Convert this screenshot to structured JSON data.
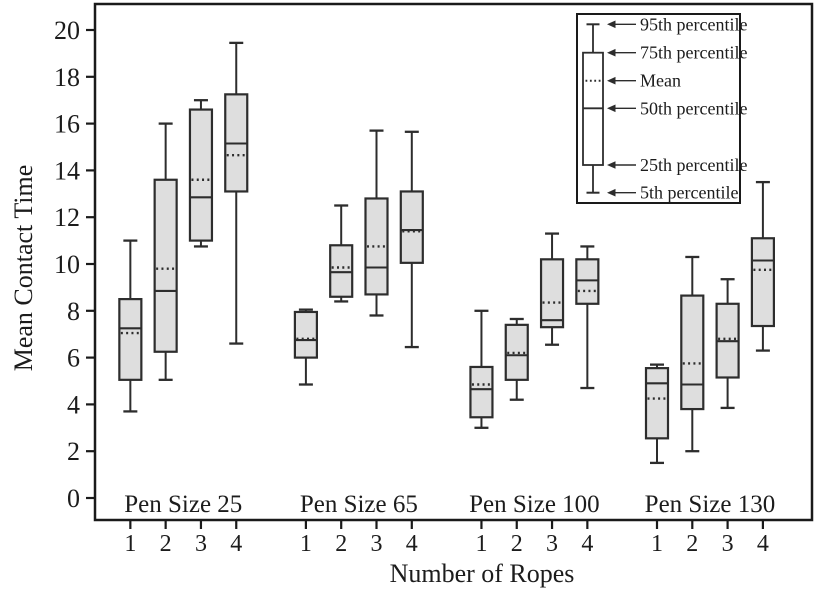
{
  "chart_data": {
    "type": "boxplot",
    "title": "",
    "ylabel": "Mean Contact Time",
    "xlabel": "Number of Ropes",
    "ylim": [
      0,
      20
    ],
    "yticks": [
      0,
      2,
      4,
      6,
      8,
      10,
      12,
      14,
      16,
      18,
      20
    ],
    "grid": false,
    "legend_position": "top-right",
    "groups": [
      {
        "label": "Pen Size 25",
        "boxes": [
          {
            "rope": "1",
            "p5": 3.7,
            "p25": 5.05,
            "median": 7.25,
            "mean": 7.05,
            "p75": 8.5,
            "p95": 11.0
          },
          {
            "rope": "2",
            "p5": 5.05,
            "p25": 6.25,
            "median": 8.85,
            "mean": 9.8,
            "p75": 13.6,
            "p95": 16.0
          },
          {
            "rope": "3",
            "p5": 10.75,
            "p25": 11.0,
            "median": 12.85,
            "mean": 13.6,
            "p75": 16.6,
            "p95": 17.0
          },
          {
            "rope": "4",
            "p5": 6.6,
            "p25": 13.1,
            "median": 15.15,
            "mean": 14.65,
            "p75": 17.25,
            "p95": 19.45
          }
        ]
      },
      {
        "label": "Pen Size 65",
        "boxes": [
          {
            "rope": "1",
            "p5": 4.85,
            "p25": 6.0,
            "median": 6.75,
            "mean": 6.8,
            "p75": 7.95,
            "p95": 8.05
          },
          {
            "rope": "2",
            "p5": 8.4,
            "p25": 8.6,
            "median": 9.65,
            "mean": 9.85,
            "p75": 10.8,
            "p95": 12.5
          },
          {
            "rope": "3",
            "p5": 7.8,
            "p25": 8.7,
            "median": 9.85,
            "mean": 10.75,
            "p75": 12.8,
            "p95": 15.7
          },
          {
            "rope": "4",
            "p5": 6.45,
            "p25": 10.05,
            "median": 11.45,
            "mean": 11.4,
            "p75": 13.1,
            "p95": 15.65
          }
        ]
      },
      {
        "label": "Pen Size 100",
        "boxes": [
          {
            "rope": "1",
            "p5": 3.0,
            "p25": 3.45,
            "median": 4.65,
            "mean": 4.85,
            "p75": 5.6,
            "p95": 8.0
          },
          {
            "rope": "2",
            "p5": 4.2,
            "p25": 5.05,
            "median": 6.1,
            "mean": 6.2,
            "p75": 7.4,
            "p95": 7.65
          },
          {
            "rope": "3",
            "p5": 6.55,
            "p25": 7.3,
            "median": 7.6,
            "mean": 8.35,
            "p75": 10.2,
            "p95": 11.3
          },
          {
            "rope": "4",
            "p5": 4.7,
            "p25": 8.3,
            "median": 9.3,
            "mean": 8.85,
            "p75": 10.2,
            "p95": 10.75
          }
        ]
      },
      {
        "label": "Pen Size 130",
        "boxes": [
          {
            "rope": "1",
            "p5": 1.5,
            "p25": 2.55,
            "median": 4.9,
            "mean": 4.25,
            "p75": 5.55,
            "p95": 5.7
          },
          {
            "rope": "2",
            "p5": 2.0,
            "p25": 3.8,
            "median": 4.85,
            "mean": 5.75,
            "p75": 8.65,
            "p95": 10.3
          },
          {
            "rope": "3",
            "p5": 3.85,
            "p25": 5.15,
            "median": 6.7,
            "mean": 6.8,
            "p75": 8.3,
            "p95": 9.35
          },
          {
            "rope": "4",
            "p5": 6.3,
            "p25": 7.35,
            "median": 10.15,
            "mean": 9.75,
            "p75": 11.1,
            "p95": 13.5
          }
        ]
      }
    ],
    "legend": {
      "entries": [
        {
          "label": "95th percentile",
          "target": "p95"
        },
        {
          "label": "75th percentile",
          "target": "p75"
        },
        {
          "label": "Mean",
          "target": "mean"
        },
        {
          "label": "50th percentile",
          "target": "median"
        },
        {
          "label": "25th percentile",
          "target": "p25"
        },
        {
          "label": "5th percentile",
          "target": "p5"
        }
      ]
    },
    "colors": {
      "background": "#ffffff",
      "box_fill": "#dedede",
      "box_stroke": "#2d2d2d",
      "line": "#2d2d2d",
      "frame": "#1a1a1a",
      "text": "#1c1c1c",
      "legend_fill": "#ffffff"
    }
  }
}
